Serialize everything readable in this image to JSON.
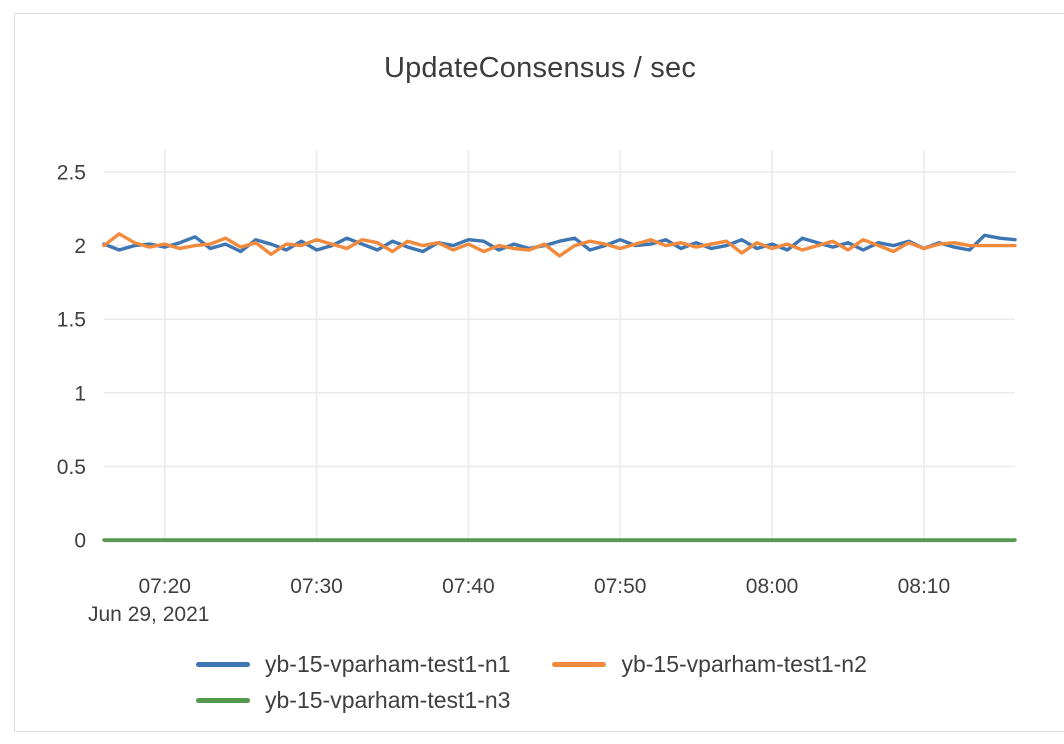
{
  "card": {
    "background": "#ffffff",
    "border_color": "#dcdcdc"
  },
  "chart_data": {
    "type": "line",
    "title": "UpdateConsensus / sec",
    "grid": true,
    "legend_position": "bottom",
    "x_axis": {
      "tick_labels": [
        "07:20",
        "07:30",
        "07:40",
        "07:50",
        "08:00",
        "08:10"
      ],
      "tick_minute_offsets": [
        4,
        14,
        24,
        34,
        44,
        54
      ],
      "date_label": "Jun 29, 2021",
      "range_minutes": 60
    },
    "y_axis": {
      "tick_labels": [
        "0",
        "0.5",
        "1",
        "1.5",
        "2",
        "2.5"
      ],
      "tick_values": [
        0,
        0.5,
        1,
        1.5,
        2,
        2.5
      ],
      "min": 0,
      "max": 2.65
    },
    "grid_color": "#ececec",
    "axis_line_color": "#8a8a8a",
    "series": [
      {
        "name": "yb-15-vparham-test1-n1",
        "color": "#3d76b3",
        "values": [
          2.01,
          1.97,
          2.0,
          2.01,
          1.99,
          2.02,
          2.06,
          1.98,
          2.01,
          1.96,
          2.04,
          2.01,
          1.97,
          2.03,
          1.97,
          2.0,
          2.05,
          2.01,
          1.97,
          2.03,
          1.99,
          1.96,
          2.02,
          2.0,
          2.04,
          2.03,
          1.97,
          2.01,
          1.98,
          2.0,
          2.03,
          2.05,
          1.97,
          2.0,
          2.04,
          2.0,
          2.01,
          2.04,
          1.98,
          2.02,
          1.98,
          2.0,
          2.04,
          1.98,
          2.01,
          1.97,
          2.05,
          2.02,
          1.99,
          2.02,
          1.97,
          2.02,
          2.0,
          2.03,
          1.98,
          2.02,
          1.99,
          1.97,
          2.07,
          2.05,
          2.04
        ]
      },
      {
        "name": "yb-15-vparham-test1-n2",
        "color": "#f28a3d",
        "values": [
          2.0,
          2.08,
          2.02,
          1.99,
          2.01,
          1.98,
          2.0,
          2.01,
          2.05,
          1.99,
          2.02,
          1.94,
          2.01,
          2.0,
          2.04,
          2.01,
          1.98,
          2.04,
          2.02,
          1.96,
          2.03,
          2.0,
          2.02,
          1.97,
          2.01,
          1.96,
          2.0,
          1.98,
          1.97,
          2.01,
          1.93,
          2.0,
          2.03,
          2.01,
          1.98,
          2.01,
          2.04,
          2.0,
          2.02,
          1.99,
          2.01,
          2.03,
          1.95,
          2.02,
          1.98,
          2.01,
          1.97,
          2.0,
          2.03,
          1.97,
          2.04,
          2.0,
          1.96,
          2.02,
          1.98,
          2.01,
          2.02,
          2.0,
          2.0,
          2.0,
          2.0
        ]
      },
      {
        "name": "yb-15-vparham-test1-n3",
        "color": "#55994e",
        "values": [
          0,
          0,
          0,
          0,
          0,
          0,
          0,
          0,
          0,
          0,
          0,
          0,
          0,
          0,
          0,
          0,
          0,
          0,
          0,
          0,
          0,
          0,
          0,
          0,
          0,
          0,
          0,
          0,
          0,
          0,
          0,
          0,
          0,
          0,
          0,
          0,
          0,
          0,
          0,
          0,
          0,
          0,
          0,
          0,
          0,
          0,
          0,
          0,
          0,
          0,
          0,
          0,
          0,
          0,
          0,
          0,
          0,
          0,
          0,
          0,
          0
        ]
      }
    ]
  }
}
